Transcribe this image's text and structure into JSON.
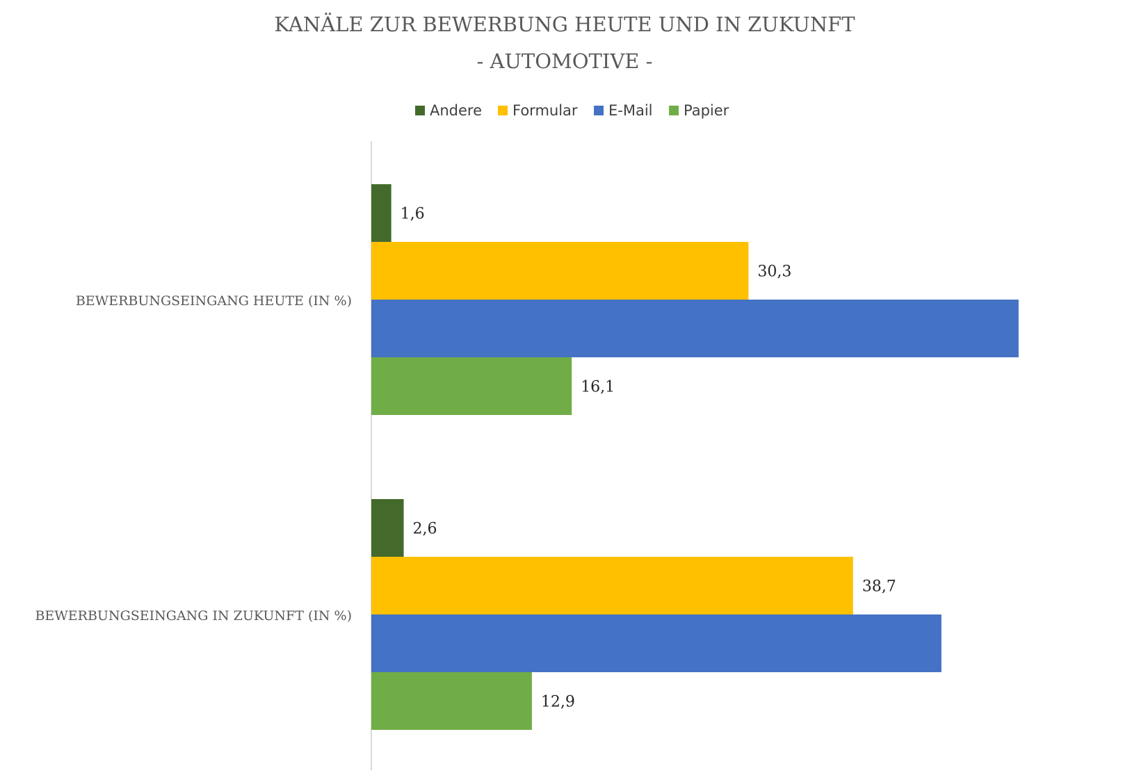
{
  "chart_data": {
    "type": "bar",
    "orientation": "horizontal",
    "title": "KANÄLE ZUR BEWERBUNG HEUTE UND IN ZUKUNFT",
    "subtitle": "- AUTOMOTIVE -",
    "categories": [
      "BEWERBUNGSEINGANG HEUTE (IN %)",
      "BEWERBUNGSEINGANG IN ZUKUNFT (IN %)"
    ],
    "series": [
      {
        "name": "Andere",
        "color": "#436A2B",
        "values": [
          1.6,
          2.6
        ],
        "labels": [
          "1,6",
          "2,6"
        ]
      },
      {
        "name": "Formular",
        "color": "#FFC000",
        "values": [
          30.3,
          38.7
        ],
        "labels": [
          "30,3",
          "38,7"
        ]
      },
      {
        "name": "E-Mail",
        "color": "#4472C4",
        "values": [
          52.0,
          45.8
        ],
        "labels": [
          "",
          ""
        ]
      },
      {
        "name": "Papier",
        "color": "#70AD47",
        "values": [
          16.1,
          12.9
        ],
        "labels": [
          "16,1",
          "12,9"
        ]
      }
    ],
    "legend_position": "top",
    "grid": false
  }
}
